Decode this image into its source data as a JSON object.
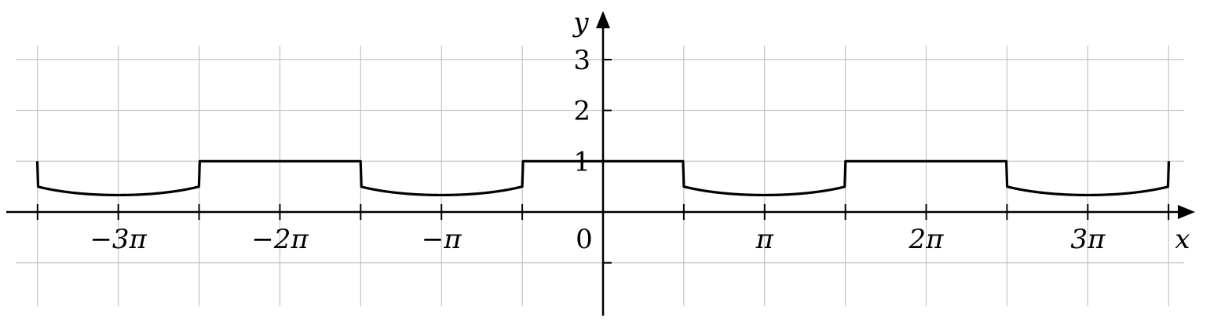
{
  "chart_data": {
    "type": "line",
    "title": "",
    "xlabel": "x",
    "ylabel": "y",
    "origin_label": "0",
    "xlim": [
      -11.2,
      11.6
    ],
    "ylim": [
      -2.0,
      3.8
    ],
    "grid": true,
    "x_tick_labels": [
      {
        "x": -9.4248,
        "label": "−3π"
      },
      {
        "x": -6.2832,
        "label": "−2π"
      },
      {
        "x": -3.1416,
        "label": "−π"
      },
      {
        "x": 3.1416,
        "label": "π"
      },
      {
        "x": 6.2832,
        "label": "2π"
      },
      {
        "x": 9.4248,
        "label": "3π"
      }
    ],
    "y_tick_labels": [
      {
        "y": 1,
        "label": "1"
      },
      {
        "y": 2,
        "label": "2"
      },
      {
        "y": 3,
        "label": "3"
      }
    ],
    "x_ticks": [
      -10.9956,
      -7.854,
      -4.7124,
      -1.5708,
      1.5708,
      4.7124,
      7.854,
      10.9956
    ],
    "y_ticks": [
      -1,
      2,
      3
    ],
    "series": [
      {
        "function": "y = 1 where cos x ≥ 0; y = 1/(2 − cos x) where cos x < 0",
        "color": "#000000",
        "x_range": [
          -11.0,
          11.0
        ],
        "minimum": {
          "value": 0.333,
          "at": [
            -9.4248,
            -3.1416,
            3.1416,
            9.4248
          ]
        }
      }
    ]
  }
}
